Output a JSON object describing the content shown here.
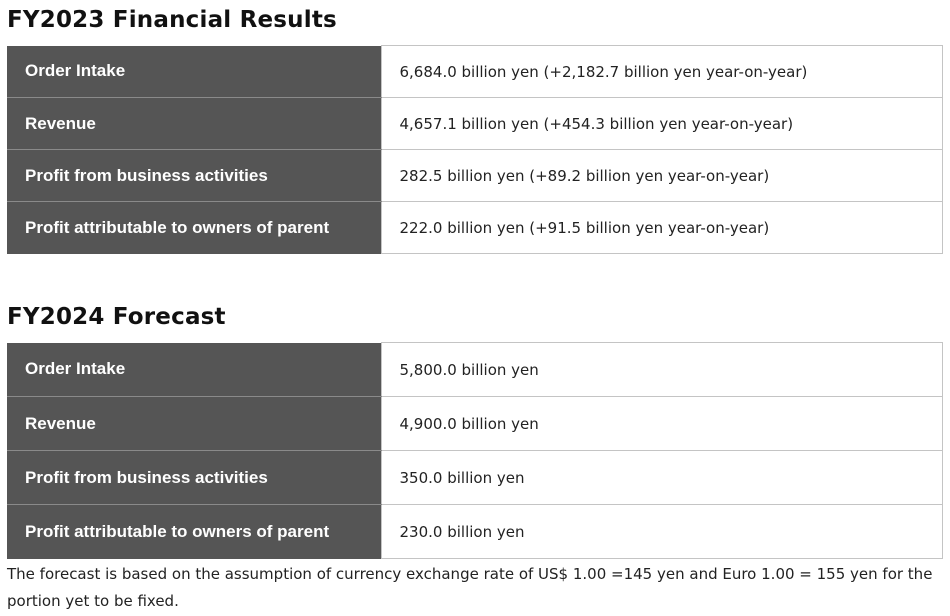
{
  "fy2023": {
    "title": "FY2023 Financial Results",
    "rows": [
      {
        "label": "Order Intake",
        "value": "6,684.0 billion yen (+2,182.7 billion yen year-on-year)"
      },
      {
        "label": "Revenue",
        "value": "4,657.1 billion yen (+454.3 billion yen year-on-year)"
      },
      {
        "label": "Profit from business activities",
        "value": "282.5 billion yen (+89.2 billion yen year-on-year)"
      },
      {
        "label": "Profit attributable to owners of parent",
        "value": "222.0 billion yen (+91.5 billion yen year-on-year)"
      }
    ]
  },
  "fy2024": {
    "title": "FY2024 Forecast",
    "rows": [
      {
        "label": "Order Intake",
        "value": "5,800.0 billion yen"
      },
      {
        "label": "Revenue",
        "value": "4,900.0 billion yen"
      },
      {
        "label": "Profit from business activities",
        "value": "350.0 billion yen"
      },
      {
        "label": "Profit attributable to owners of parent",
        "value": "230.0 billion yen"
      }
    ]
  },
  "note": "The forecast is based on the assumption of currency exchange rate of US$ 1.00 =145 yen and Euro 1.00 = 155 yen for the portion yet to be fixed.",
  "colors": {
    "header_cell": "#555555",
    "border": "#c4c4c4"
  }
}
